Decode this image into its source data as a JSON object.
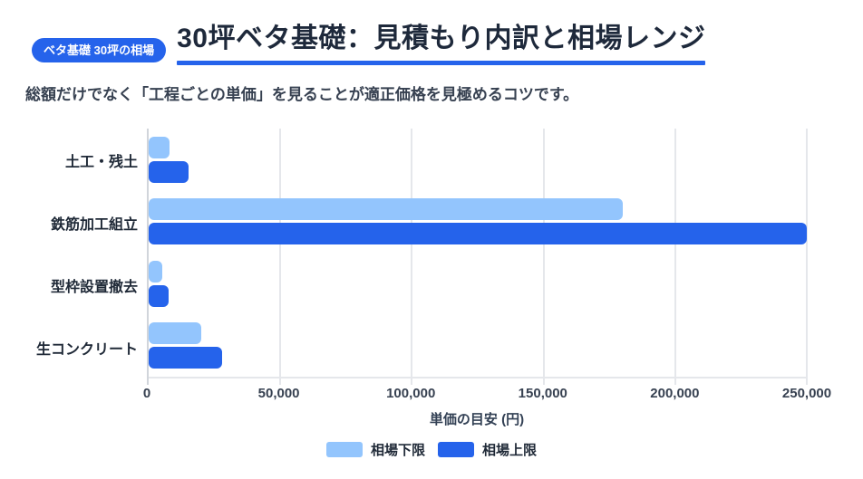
{
  "header": {
    "badge": "ベタ基礎 30坪の相場",
    "title": "30坪ベタ基礎：見積もり内訳と相場レンジ"
  },
  "subtitle": "総額だけでなく「工程ごとの単価」を見ることが適正価格を見極めるコツです。",
  "chart_data": {
    "type": "bar",
    "orientation": "horizontal",
    "title": "30坪ベタ基礎：見積もり内訳と相場レンジ",
    "categories": [
      "土工・残土",
      "鉄筋加工組立",
      "型枠設置撤去",
      "生コンクリート"
    ],
    "series": [
      {
        "name": "相場下限",
        "color": "#93c5fd",
        "values": [
          8000,
          180000,
          5000,
          20000
        ]
      },
      {
        "name": "相場上限",
        "color": "#2563eb",
        "values": [
          15000,
          250000,
          7500,
          28000
        ]
      }
    ],
    "xlabel": "単価の目安 (円)",
    "ylabel": "",
    "xlim": [
      0,
      250000
    ],
    "xticks": [
      0,
      50000,
      100000,
      150000,
      200000,
      250000
    ],
    "xtick_labels": [
      "0",
      "50,000",
      "100,000",
      "150,000",
      "200,000",
      "250,000"
    ],
    "grid": true,
    "legend_position": "bottom"
  },
  "colors": {
    "accent": "#2563eb",
    "badge_bg": "#2563eb",
    "badge_text": "#ffffff",
    "series_lower": "#93c5fd",
    "series_upper": "#2563eb",
    "title_text": "#1e293b",
    "gridline": "#e5e7eb",
    "axis_line": "#d1d5db"
  }
}
